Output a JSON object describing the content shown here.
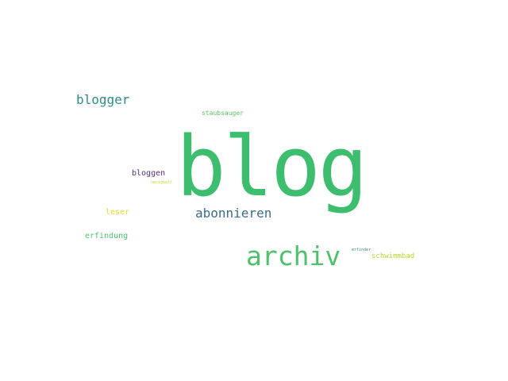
{
  "wordcloud": {
    "words": [
      {
        "id": "blog",
        "text": "blog",
        "color": "#3dbd6e"
      },
      {
        "id": "archiv",
        "text": "archiv",
        "color": "#4cc26c"
      },
      {
        "id": "blogger",
        "text": "blogger",
        "color": "#2b8e8b"
      },
      {
        "id": "abonnieren",
        "text": "abonnieren",
        "color": "#3a6b8f"
      },
      {
        "id": "bloggen",
        "text": "bloggen",
        "color": "#5a2f78"
      },
      {
        "id": "staubsauger",
        "text": "staubsauger",
        "color": "#5dc863"
      },
      {
        "id": "leser",
        "text": "leser",
        "color": "#e8d82a"
      },
      {
        "id": "erfindung",
        "text": "erfindung",
        "color": "#4cc26c"
      },
      {
        "id": "schwimmbad",
        "text": "schwimmbad",
        "color": "#b4dc2c"
      },
      {
        "id": "neuigkeit",
        "text": "neuigkeit",
        "color": "#c8dc30"
      },
      {
        "id": "erfinder",
        "text": "erfinder",
        "color": "#2a8a8a"
      }
    ]
  }
}
